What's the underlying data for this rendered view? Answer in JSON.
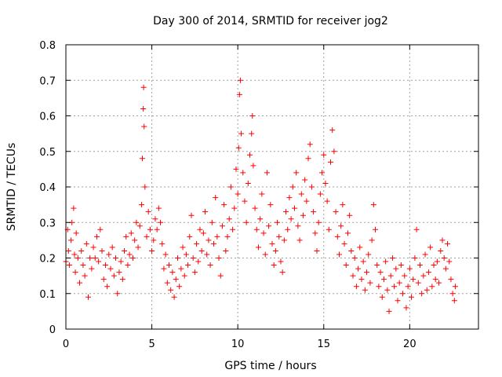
{
  "chart_data": {
    "type": "scatter",
    "title": "Day 300 of 2014, SRMTID for receiver jog2",
    "xlabel": "GPS time / hours",
    "ylabel": "SRMTID / TECUs",
    "xlim": [
      0,
      24
    ],
    "ylim": [
      0,
      0.8
    ],
    "xticks": [
      0,
      5,
      10,
      15,
      20
    ],
    "yticks": [
      0,
      0.1,
      0.2,
      0.3,
      0.4,
      0.5,
      0.6,
      0.7,
      0.8
    ],
    "xtick_labels": [
      "0",
      "5",
      "10",
      "15",
      "20"
    ],
    "ytick_labels": [
      "0",
      "0.1",
      "0.2",
      "0.3",
      "0.4",
      "0.5",
      "0.6",
      "0.7",
      "0.8"
    ],
    "grid": true,
    "marker": "+",
    "color": "#ff0000",
    "series": [
      {
        "name": "SRMTID",
        "points": [
          [
            0.0,
            0.19
          ],
          [
            0.1,
            0.28
          ],
          [
            0.15,
            0.22
          ],
          [
            0.2,
            0.18
          ],
          [
            0.3,
            0.25
          ],
          [
            0.35,
            0.3
          ],
          [
            0.45,
            0.34
          ],
          [
            0.5,
            0.21
          ],
          [
            0.55,
            0.16
          ],
          [
            0.6,
            0.27
          ],
          [
            0.7,
            0.2
          ],
          [
            0.8,
            0.13
          ],
          [
            0.9,
            0.22
          ],
          [
            1.0,
            0.18
          ],
          [
            1.1,
            0.15
          ],
          [
            1.2,
            0.24
          ],
          [
            1.3,
            0.09
          ],
          [
            1.4,
            0.2
          ],
          [
            1.5,
            0.17
          ],
          [
            1.6,
            0.23
          ],
          [
            1.7,
            0.2
          ],
          [
            1.8,
            0.26
          ],
          [
            1.9,
            0.19
          ],
          [
            2.0,
            0.28
          ],
          [
            2.1,
            0.22
          ],
          [
            2.2,
            0.14
          ],
          [
            2.3,
            0.18
          ],
          [
            2.4,
            0.12
          ],
          [
            2.5,
            0.21
          ],
          [
            2.6,
            0.17
          ],
          [
            2.7,
            0.23
          ],
          [
            2.8,
            0.15
          ],
          [
            2.9,
            0.2
          ],
          [
            3.0,
            0.1
          ],
          [
            3.1,
            0.16
          ],
          [
            3.2,
            0.19
          ],
          [
            3.3,
            0.14
          ],
          [
            3.4,
            0.22
          ],
          [
            3.5,
            0.26
          ],
          [
            3.6,
            0.18
          ],
          [
            3.7,
            0.21
          ],
          [
            3.8,
            0.27
          ],
          [
            3.9,
            0.2
          ],
          [
            4.0,
            0.25
          ],
          [
            4.1,
            0.3
          ],
          [
            4.2,
            0.23
          ],
          [
            4.3,
            0.29
          ],
          [
            4.4,
            0.35
          ],
          [
            4.45,
            0.48
          ],
          [
            4.5,
            0.62
          ],
          [
            4.52,
            0.68
          ],
          [
            4.55,
            0.57
          ],
          [
            4.6,
            0.4
          ],
          [
            4.7,
            0.26
          ],
          [
            4.8,
            0.33
          ],
          [
            4.9,
            0.28
          ],
          [
            5.0,
            0.22
          ],
          [
            5.1,
            0.25
          ],
          [
            5.2,
            0.31
          ],
          [
            5.3,
            0.28
          ],
          [
            5.4,
            0.34
          ],
          [
            5.5,
            0.3
          ],
          [
            5.6,
            0.24
          ],
          [
            5.7,
            0.17
          ],
          [
            5.8,
            0.21
          ],
          [
            5.9,
            0.13
          ],
          [
            6.0,
            0.18
          ],
          [
            6.1,
            0.11
          ],
          [
            6.2,
            0.16
          ],
          [
            6.3,
            0.09
          ],
          [
            6.4,
            0.14
          ],
          [
            6.5,
            0.2
          ],
          [
            6.6,
            0.12
          ],
          [
            6.7,
            0.17
          ],
          [
            6.8,
            0.23
          ],
          [
            6.9,
            0.15
          ],
          [
            7.0,
            0.21
          ],
          [
            7.1,
            0.18
          ],
          [
            7.2,
            0.26
          ],
          [
            7.3,
            0.32
          ],
          [
            7.4,
            0.2
          ],
          [
            7.5,
            0.16
          ],
          [
            7.6,
            0.24
          ],
          [
            7.7,
            0.19
          ],
          [
            7.8,
            0.28
          ],
          [
            7.9,
            0.22
          ],
          [
            8.0,
            0.27
          ],
          [
            8.1,
            0.33
          ],
          [
            8.2,
            0.21
          ],
          [
            8.3,
            0.25
          ],
          [
            8.4,
            0.18
          ],
          [
            8.5,
            0.3
          ],
          [
            8.6,
            0.24
          ],
          [
            8.7,
            0.37
          ],
          [
            8.8,
            0.26
          ],
          [
            8.9,
            0.2
          ],
          [
            9.0,
            0.15
          ],
          [
            9.1,
            0.29
          ],
          [
            9.2,
            0.35
          ],
          [
            9.3,
            0.22
          ],
          [
            9.4,
            0.26
          ],
          [
            9.5,
            0.31
          ],
          [
            9.6,
            0.4
          ],
          [
            9.7,
            0.28
          ],
          [
            9.8,
            0.34
          ],
          [
            9.9,
            0.45
          ],
          [
            10.0,
            0.38
          ],
          [
            10.05,
            0.51
          ],
          [
            10.1,
            0.66
          ],
          [
            10.15,
            0.7
          ],
          [
            10.2,
            0.55
          ],
          [
            10.3,
            0.44
          ],
          [
            10.4,
            0.36
          ],
          [
            10.5,
            0.3
          ],
          [
            10.6,
            0.41
          ],
          [
            10.7,
            0.49
          ],
          [
            10.8,
            0.55
          ],
          [
            10.85,
            0.6
          ],
          [
            10.9,
            0.46
          ],
          [
            11.0,
            0.34
          ],
          [
            11.1,
            0.28
          ],
          [
            11.2,
            0.23
          ],
          [
            11.3,
            0.31
          ],
          [
            11.4,
            0.38
          ],
          [
            11.5,
            0.27
          ],
          [
            11.6,
            0.21
          ],
          [
            11.7,
            0.44
          ],
          [
            11.8,
            0.29
          ],
          [
            11.9,
            0.35
          ],
          [
            12.0,
            0.24
          ],
          [
            12.1,
            0.18
          ],
          [
            12.2,
            0.22
          ],
          [
            12.3,
            0.3
          ],
          [
            12.4,
            0.26
          ],
          [
            12.5,
            0.19
          ],
          [
            12.6,
            0.16
          ],
          [
            12.7,
            0.25
          ],
          [
            12.8,
            0.33
          ],
          [
            12.9,
            0.28
          ],
          [
            13.0,
            0.37
          ],
          [
            13.1,
            0.31
          ],
          [
            13.2,
            0.4
          ],
          [
            13.3,
            0.34
          ],
          [
            13.4,
            0.44
          ],
          [
            13.5,
            0.29
          ],
          [
            13.6,
            0.25
          ],
          [
            13.7,
            0.38
          ],
          [
            13.8,
            0.32
          ],
          [
            13.9,
            0.42
          ],
          [
            14.0,
            0.36
          ],
          [
            14.1,
            0.48
          ],
          [
            14.2,
            0.52
          ],
          [
            14.3,
            0.4
          ],
          [
            14.4,
            0.33
          ],
          [
            14.5,
            0.27
          ],
          [
            14.6,
            0.22
          ],
          [
            14.7,
            0.3
          ],
          [
            14.8,
            0.38
          ],
          [
            14.9,
            0.44
          ],
          [
            15.0,
            0.49
          ],
          [
            15.1,
            0.41
          ],
          [
            15.2,
            0.36
          ],
          [
            15.3,
            0.28
          ],
          [
            15.4,
            0.47
          ],
          [
            15.5,
            0.56
          ],
          [
            15.6,
            0.5
          ],
          [
            15.7,
            0.33
          ],
          [
            15.8,
            0.26
          ],
          [
            15.9,
            0.21
          ],
          [
            16.0,
            0.29
          ],
          [
            16.1,
            0.35
          ],
          [
            16.2,
            0.24
          ],
          [
            16.3,
            0.18
          ],
          [
            16.4,
            0.27
          ],
          [
            16.5,
            0.32
          ],
          [
            16.6,
            0.22
          ],
          [
            16.7,
            0.15
          ],
          [
            16.8,
            0.2
          ],
          [
            16.9,
            0.12
          ],
          [
            17.0,
            0.17
          ],
          [
            17.1,
            0.23
          ],
          [
            17.2,
            0.14
          ],
          [
            17.3,
            0.19
          ],
          [
            17.4,
            0.11
          ],
          [
            17.5,
            0.16
          ],
          [
            17.6,
            0.21
          ],
          [
            17.7,
            0.13
          ],
          [
            17.8,
            0.25
          ],
          [
            17.9,
            0.35
          ],
          [
            18.0,
            0.28
          ],
          [
            18.1,
            0.18
          ],
          [
            18.2,
            0.12
          ],
          [
            18.3,
            0.16
          ],
          [
            18.4,
            0.09
          ],
          [
            18.5,
            0.14
          ],
          [
            18.6,
            0.19
          ],
          [
            18.7,
            0.11
          ],
          [
            18.8,
            0.05
          ],
          [
            18.9,
            0.15
          ],
          [
            19.0,
            0.2
          ],
          [
            19.1,
            0.12
          ],
          [
            19.2,
            0.17
          ],
          [
            19.3,
            0.08
          ],
          [
            19.4,
            0.13
          ],
          [
            19.5,
            0.18
          ],
          [
            19.6,
            0.1
          ],
          [
            19.7,
            0.15
          ],
          [
            19.8,
            0.06
          ],
          [
            19.9,
            0.12
          ],
          [
            20.0,
            0.17
          ],
          [
            20.1,
            0.09
          ],
          [
            20.2,
            0.14
          ],
          [
            20.3,
            0.2
          ],
          [
            20.4,
            0.28
          ],
          [
            20.5,
            0.13
          ],
          [
            20.6,
            0.18
          ],
          [
            20.7,
            0.1
          ],
          [
            20.8,
            0.15
          ],
          [
            20.9,
            0.21
          ],
          [
            21.0,
            0.11
          ],
          [
            21.1,
            0.16
          ],
          [
            21.2,
            0.23
          ],
          [
            21.3,
            0.12
          ],
          [
            21.4,
            0.18
          ],
          [
            21.5,
            0.14
          ],
          [
            21.6,
            0.19
          ],
          [
            21.7,
            0.13
          ],
          [
            21.8,
            0.22
          ],
          [
            21.9,
            0.25
          ],
          [
            22.0,
            0.2
          ],
          [
            22.1,
            0.17
          ],
          [
            22.2,
            0.24
          ],
          [
            22.3,
            0.19
          ],
          [
            22.4,
            0.14
          ],
          [
            22.5,
            0.1
          ],
          [
            22.6,
            0.08
          ],
          [
            22.65,
            0.12
          ]
        ]
      }
    ]
  }
}
